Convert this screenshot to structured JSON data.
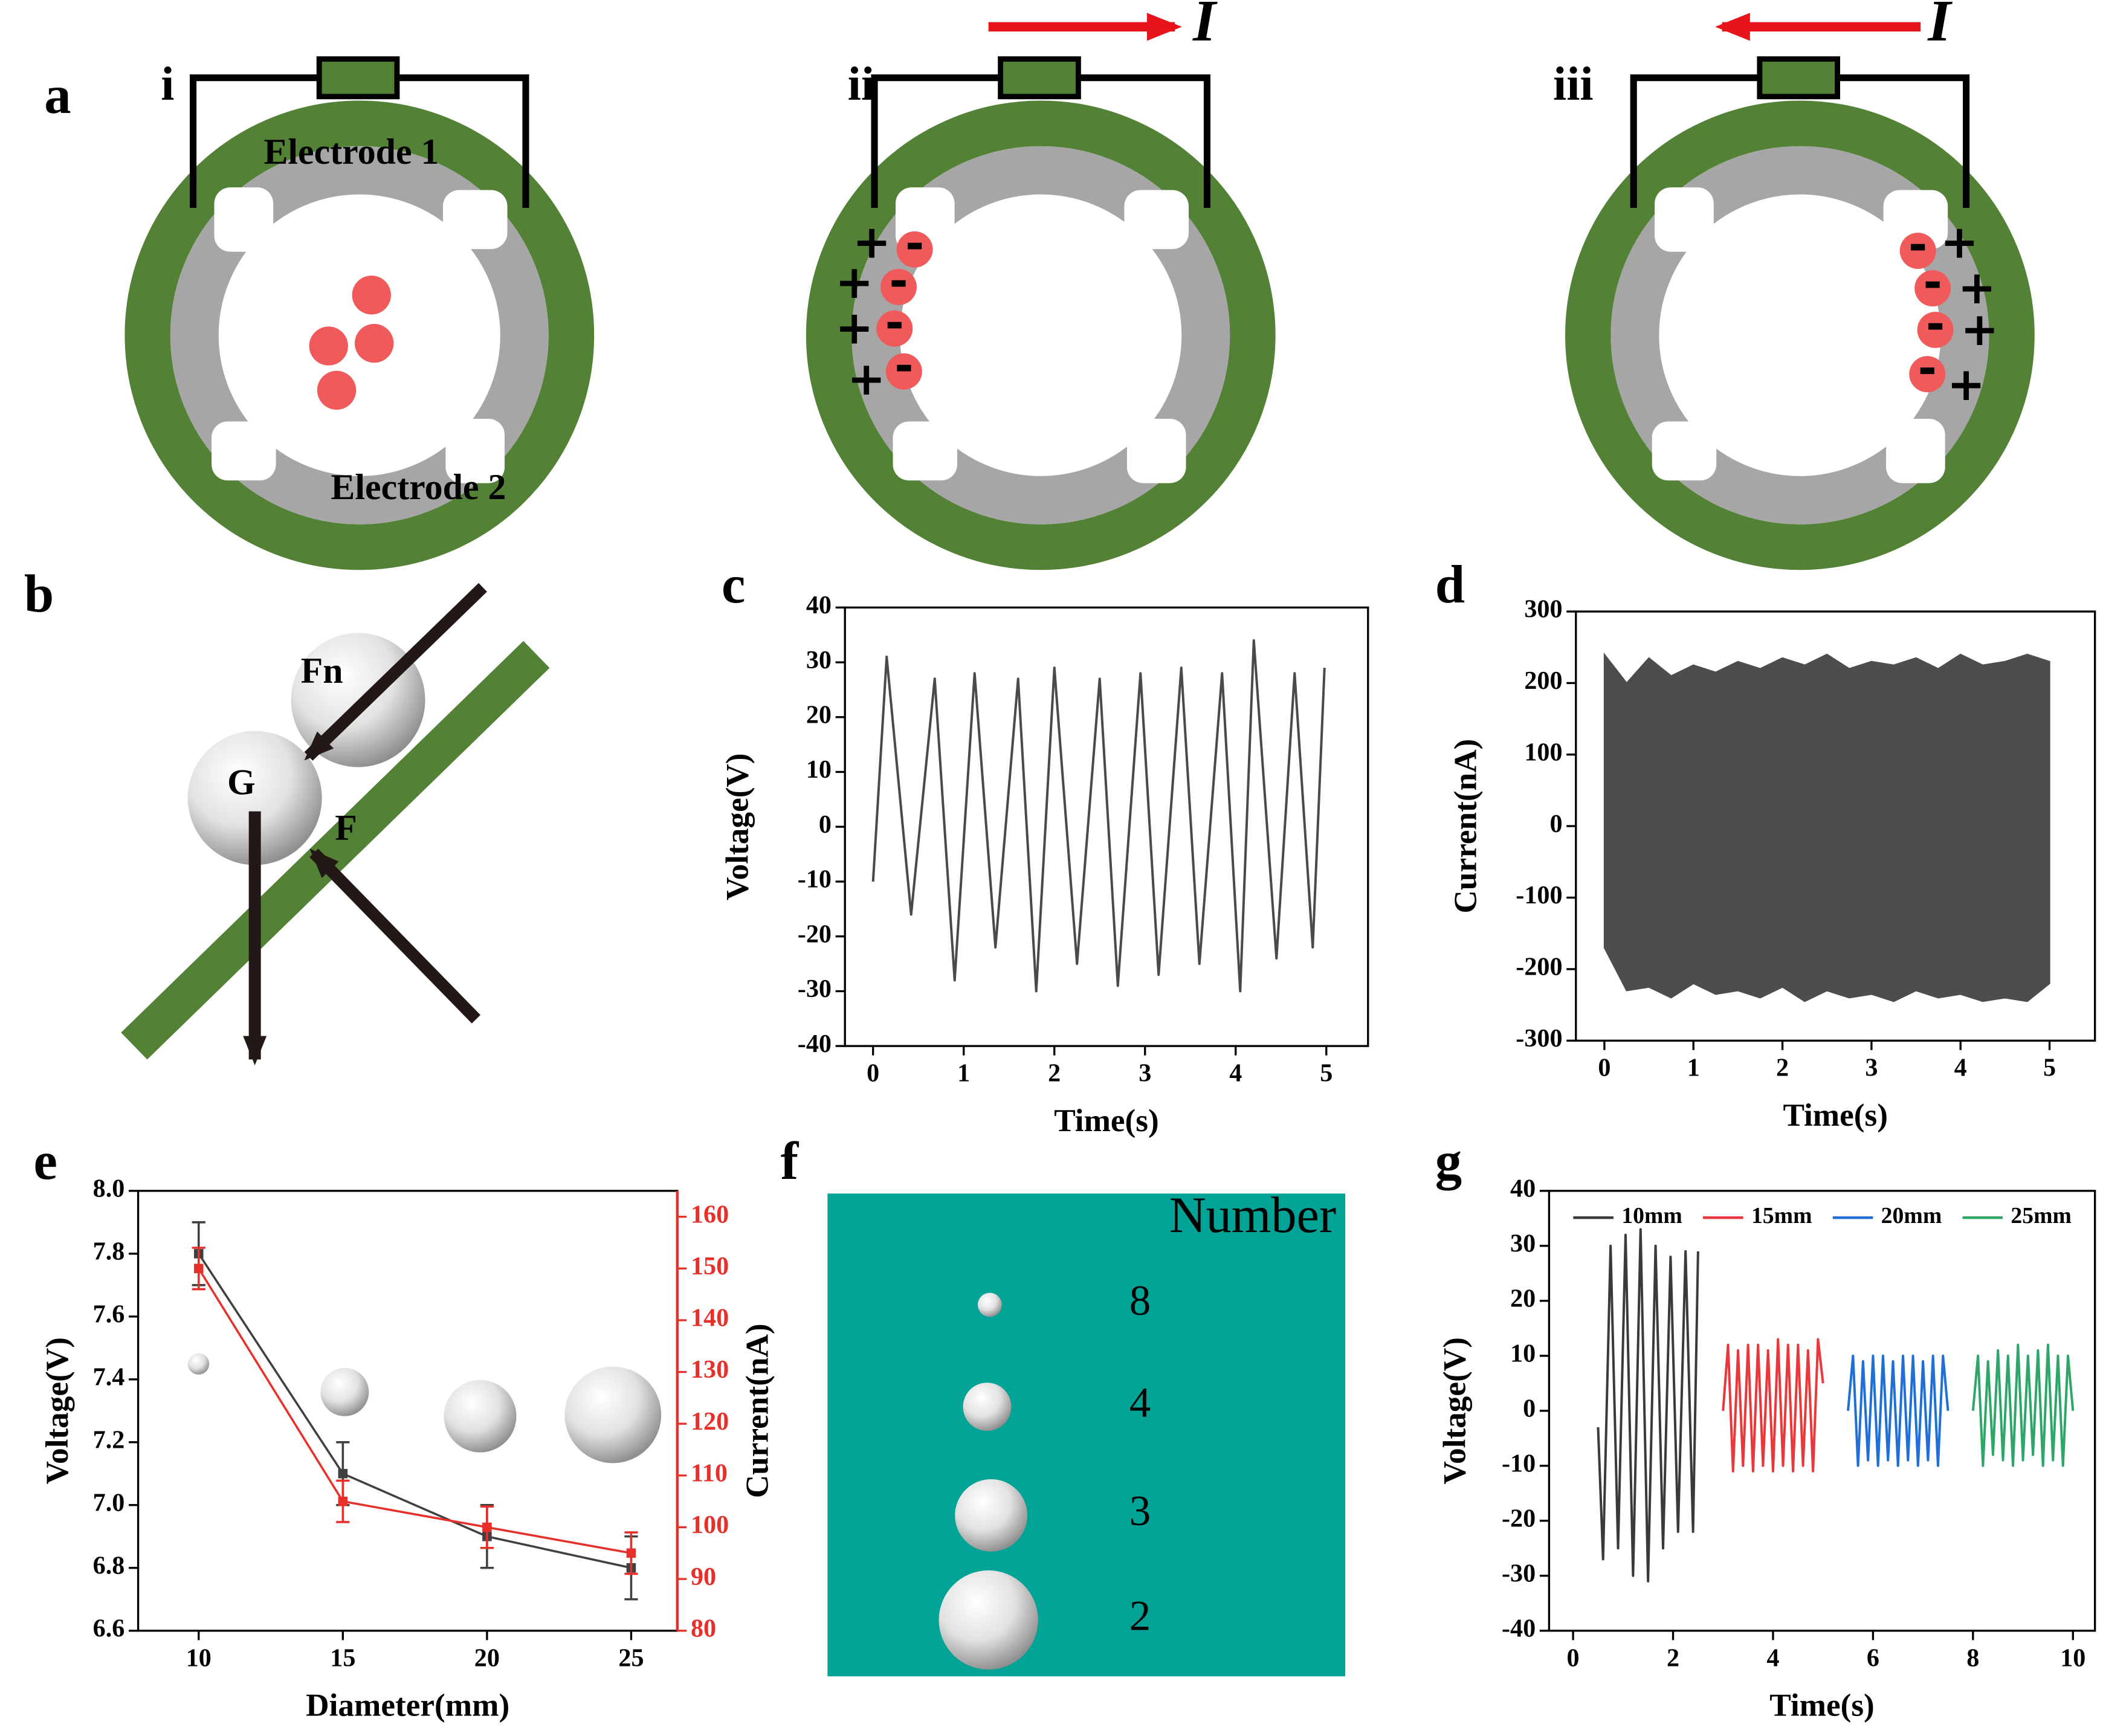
{
  "chart_data": [
    {
      "type": "line",
      "panel": "c",
      "xlabel": "Time(s)",
      "ylabel": "Voltage(V)",
      "x": [
        0,
        0.15,
        0.42,
        0.68,
        0.9,
        1.12,
        1.35,
        1.6,
        1.8,
        2.0,
        2.25,
        2.5,
        2.7,
        2.95,
        3.15,
        3.4,
        3.6,
        3.85,
        4.05,
        4.2,
        4.45,
        4.65,
        4.85,
        4.98
      ],
      "series": [
        {
          "color": "#4a4a4a",
          "values": [
            -10,
            31,
            -16,
            27,
            -28,
            28,
            -22,
            27,
            -30,
            29,
            -25,
            27,
            -29,
            28,
            -27,
            29,
            -25,
            28,
            -30,
            34,
            -24,
            28,
            -22,
            29
          ]
        }
      ],
      "xlim": [
        -0.31,
        5.46
      ],
      "xticks": [
        0,
        1,
        2,
        3,
        4,
        5
      ],
      "ylim": [
        -40,
        40
      ],
      "yticks": [
        -40,
        -30,
        -20,
        -10,
        0,
        10,
        20,
        30,
        40
      ]
    },
    {
      "type": "area",
      "panel": "d",
      "xlabel": "Time(s)",
      "ylabel": "Current(nA)",
      "x": [
        0,
        0.25,
        0.5,
        0.75,
        1,
        1.25,
        1.5,
        1.75,
        2,
        2.25,
        2.5,
        2.75,
        3,
        3.25,
        3.5,
        3.75,
        4,
        4.25,
        4.5,
        4.75,
        5
      ],
      "series": [
        {
          "color": "#4d4d4d",
          "values": [
            240,
            200,
            235,
            210,
            225,
            215,
            230,
            220,
            235,
            225,
            240,
            220,
            230,
            225,
            235,
            220,
            240,
            225,
            230,
            240,
            230
          ]
        },
        {
          "color": "#4d4d4d",
          "values": [
            -170,
            -230,
            -225,
            -240,
            -220,
            -235,
            -230,
            -240,
            -225,
            -245,
            -230,
            -240,
            -235,
            -245,
            -230,
            -240,
            -235,
            -245,
            -240,
            -245,
            -220
          ]
        }
      ],
      "xlim": [
        -0.32,
        5.51
      ],
      "xticks": [
        0,
        1,
        2,
        3,
        4,
        5
      ],
      "ylim": [
        -300,
        300
      ],
      "yticks": [
        -300,
        -200,
        -100,
        0,
        100,
        200,
        300
      ]
    },
    {
      "type": "line",
      "panel": "e",
      "xlabel": "Diameter(mm)",
      "ylabel": "Voltage(V)",
      "y2label": "Current(nA)",
      "x": [
        10,
        15,
        20,
        25
      ],
      "series": [
        {
          "color": "#404040",
          "values": [
            7.8,
            7.1,
            6.9,
            6.8
          ],
          "errors": [
            0.1,
            0.1,
            0.1,
            0.1
          ]
        },
        {
          "color": "#e8302b",
          "axis": "y2",
          "values": [
            150,
            105,
            100,
            95
          ],
          "errors": [
            4,
            4,
            4,
            4
          ]
        }
      ],
      "xlim": [
        7.9,
        26.6
      ],
      "xticks": [
        10,
        15,
        20,
        25
      ],
      "ylim": [
        6.6,
        8.0
      ],
      "yticks": [
        6.6,
        6.8,
        {
          "value": 7,
          "label": "7.0"
        },
        7.2,
        7.4,
        7.6,
        7.8,
        {
          "value": 8,
          "label": "8.0"
        }
      ],
      "y2lim": [
        80,
        165
      ],
      "y2ticks": [
        80,
        90,
        100,
        110,
        120,
        130,
        140,
        150,
        160
      ]
    },
    {
      "type": "line",
      "panel": "g",
      "xlabel": "Time(s)",
      "ylabel": "Voltage(V)",
      "legend": "top",
      "series": [
        {
          "name": "10mm",
          "color": "#3a3a3a",
          "x": [
            0.5,
            0.6,
            0.75,
            0.9,
            1.05,
            1.2,
            1.35,
            1.5,
            1.65,
            1.8,
            1.95,
            2.1,
            2.25,
            2.4,
            2.5
          ],
          "values": [
            -3,
            -27,
            30,
            -25,
            32,
            -30,
            33,
            -31,
            30,
            -25,
            28,
            -22,
            29,
            -22,
            29
          ]
        },
        {
          "name": "15mm",
          "color": "#e8383b",
          "x": [
            3,
            3.1,
            3.2,
            3.3,
            3.4,
            3.5,
            3.6,
            3.7,
            3.8,
            3.9,
            4,
            4.1,
            4.2,
            4.3,
            4.4,
            4.5,
            4.6,
            4.7,
            4.8,
            4.9,
            5
          ],
          "values": [
            0,
            12,
            -11,
            11,
            -10,
            12,
            -11,
            12,
            -10,
            11,
            -11,
            13,
            -10,
            12,
            -11,
            12,
            -10,
            11,
            -11,
            13,
            5
          ]
        },
        {
          "name": "20mm",
          "color": "#1f6fd6",
          "x": [
            5.5,
            5.6,
            5.7,
            5.8,
            5.9,
            6,
            6.1,
            6.2,
            6.3,
            6.4,
            6.5,
            6.6,
            6.7,
            6.8,
            6.9,
            7,
            7.1,
            7.2,
            7.3,
            7.4,
            7.5
          ],
          "values": [
            0,
            10,
            -10,
            9,
            -9,
            10,
            -10,
            10,
            -9,
            9,
            -10,
            10,
            -9,
            10,
            -10,
            9,
            -9,
            10,
            -10,
            10,
            0
          ]
        },
        {
          "name": "25mm",
          "color": "#2ea66a",
          "x": [
            8,
            8.1,
            8.2,
            8.3,
            8.4,
            8.5,
            8.6,
            8.7,
            8.8,
            8.9,
            9,
            9.1,
            9.2,
            9.3,
            9.4,
            9.5,
            9.6,
            9.7,
            9.8,
            9.9,
            10
          ],
          "values": [
            0,
            10,
            -10,
            9,
            -8,
            11,
            -9,
            10,
            -10,
            12,
            -9,
            10,
            -8,
            11,
            -10,
            12,
            -9,
            10,
            -10,
            10,
            0
          ]
        }
      ],
      "xlim": [
        -0.48,
        10.44
      ],
      "xticks": [
        0,
        2,
        4,
        6,
        8,
        10
      ],
      "ylim": [
        -40,
        40
      ],
      "yticks": [
        -40,
        -30,
        -20,
        -10,
        0,
        10,
        20,
        30,
        40
      ]
    }
  ],
  "diagram_a": {
    "panel": "a",
    "subpanels": [
      "i",
      "ii",
      "iii"
    ],
    "electrode_labels": [
      "Electrode 1",
      "Electrode 2"
    ],
    "current_symbol": "I",
    "plus": "+",
    "minus": "-"
  },
  "diagram_b": {
    "panel": "b",
    "forces": [
      "Fn",
      "G",
      "F"
    ]
  },
  "diagram_f": {
    "panel": "f",
    "header": "Number",
    "numbers": [
      8,
      4,
      3,
      2
    ]
  }
}
